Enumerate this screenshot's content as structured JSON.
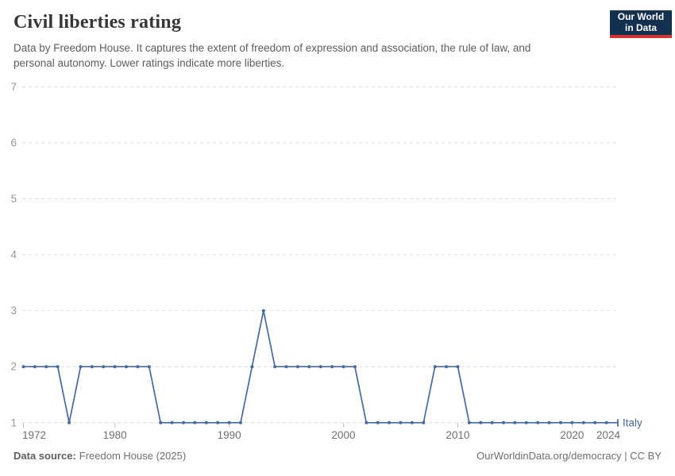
{
  "header": {
    "title": "Civil liberties rating",
    "subtitle_line1": "Data by Freedom House. It captures the extent of freedom of expression and association, the rule of law, and",
    "subtitle_line2": "personal autonomy. Lower ratings indicate more liberties.",
    "logo": {
      "line1": "Our World",
      "line2": "in Data",
      "bg_color": "#14304f",
      "stripe_color": "#d13532"
    }
  },
  "chart_data": {
    "type": "line",
    "title": "Civil liberties rating",
    "xlabel": "",
    "ylabel": "",
    "ylim": [
      1,
      7
    ],
    "yticks": [
      1,
      2,
      3,
      4,
      5,
      6,
      7
    ],
    "xticks": [
      1972,
      1980,
      1990,
      2000,
      2010,
      2020,
      2024
    ],
    "grid": "horizontal-dashed",
    "legend_position": "end-of-line",
    "x": [
      1972,
      1973,
      1974,
      1975,
      1976,
      1977,
      1978,
      1979,
      1980,
      1981,
      1982,
      1983,
      1984,
      1985,
      1986,
      1987,
      1988,
      1989,
      1990,
      1991,
      1992,
      1993,
      1994,
      1995,
      1996,
      1997,
      1998,
      1999,
      2000,
      2001,
      2002,
      2003,
      2004,
      2005,
      2006,
      2007,
      2008,
      2009,
      2010,
      2011,
      2012,
      2013,
      2014,
      2015,
      2016,
      2017,
      2018,
      2019,
      2020,
      2021,
      2022,
      2023,
      2024
    ],
    "series": [
      {
        "name": "Italy",
        "color": "#4669a0",
        "values": [
          2,
          2,
          2,
          2,
          1,
          2,
          2,
          2,
          2,
          2,
          2,
          2,
          1,
          1,
          1,
          1,
          1,
          1,
          1,
          1,
          2,
          3,
          2,
          2,
          2,
          2,
          2,
          2,
          2,
          2,
          1,
          1,
          1,
          1,
          1,
          1,
          2,
          2,
          2,
          1,
          1,
          1,
          1,
          1,
          1,
          1,
          1,
          1,
          1,
          1,
          1,
          1,
          1
        ]
      }
    ]
  },
  "footer": {
    "source_label": "Data source:",
    "source_value": "Freedom House (2025)",
    "credit": "OurWorldinData.org/democracy | CC BY"
  },
  "colors": {
    "line": "#4669a0",
    "gridline": "#dedede",
    "tick": "#c4c4c4",
    "y_label": "#979797",
    "x_label": "#6f6f6f"
  }
}
